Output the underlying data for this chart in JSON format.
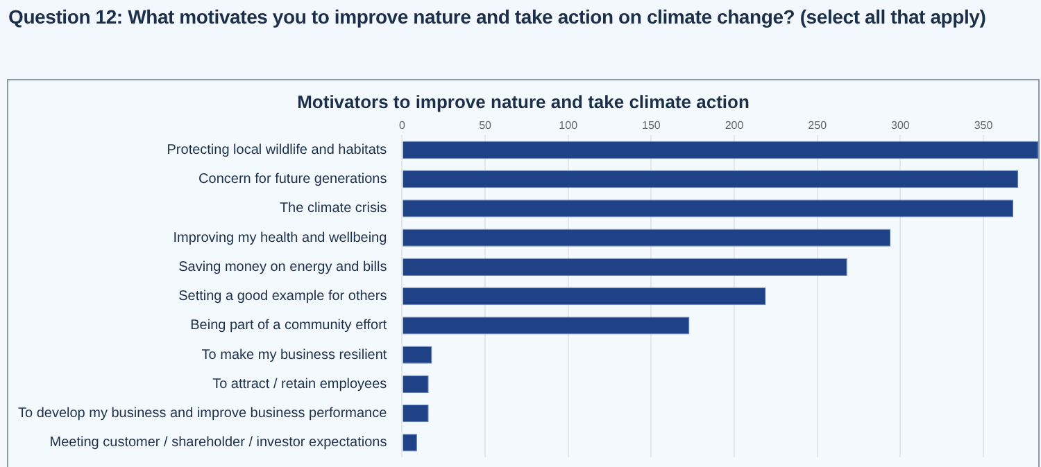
{
  "chart_data": {
    "type": "bar",
    "orientation": "horizontal",
    "title": "Question 12: What motivates you to improve nature and take action on climate change? (select all that apply)",
    "subtitle": "Motivators to improve nature and take climate action",
    "categories": [
      "Protecting local wildlife and habitats",
      "Concern for future generations",
      "The climate crisis",
      "Improving my health and wellbeing",
      "Saving money on energy and bills",
      "Setting a good example for others",
      "Being part of a community effort",
      "To make my business resilient",
      "To attract / retain employees",
      "To develop my business and improve business performance",
      "Meeting customer / shareholder / investor expectations"
    ],
    "values": [
      383,
      371,
      368,
      294,
      268,
      219,
      173,
      18,
      16,
      16,
      9
    ],
    "color": "#1f4287",
    "xlim": [
      0,
      383
    ],
    "xticks": [
      0,
      50,
      100,
      150,
      200,
      250,
      300,
      350
    ],
    "grid": "x",
    "legend": false
  }
}
